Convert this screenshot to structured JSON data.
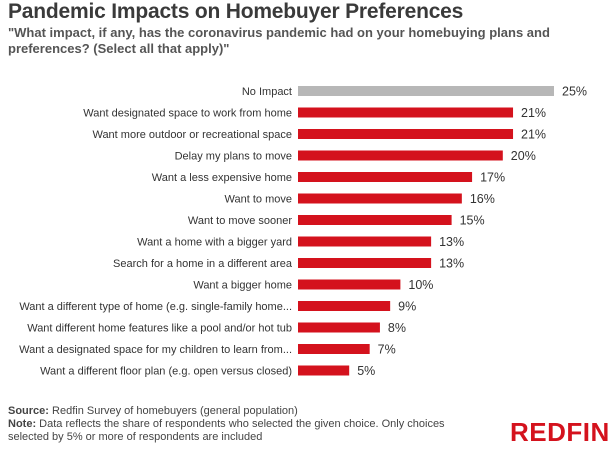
{
  "title": "Pandemic Impacts on Homebuyer Preferences",
  "subtitle": "\"What impact, if any, has the coronavirus pandemic had on your homebuying plans and preferences? (Select all that apply)\"",
  "chart_data": {
    "type": "bar",
    "orientation": "horizontal",
    "categories": [
      "No Impact",
      "Want designated space to work from home",
      "Want more outdoor or recreational space",
      "Delay my plans to move",
      "Want a less expensive home",
      "Want to move",
      "Want to move sooner",
      "Want a home with a bigger yard",
      "Search for a home in a different area",
      "Want a bigger home",
      "Want a different type of home (e.g. single-family home...",
      "Want different home features like a pool and/or hot tub",
      "Want a designated space for my children to learn from...",
      "Want a different floor plan (e.g. open versus closed)"
    ],
    "values": [
      25,
      21,
      21,
      20,
      17,
      16,
      15,
      13,
      13,
      10,
      9,
      8,
      7,
      5
    ],
    "value_labels": [
      "25%",
      "21%",
      "21%",
      "20%",
      "17%",
      "16%",
      "15%",
      "13%",
      "13%",
      "10%",
      "9%",
      "8%",
      "7%",
      "5%"
    ],
    "colors": [
      "#b7b7b7",
      "#d4121d",
      "#d4121d",
      "#d4121d",
      "#d4121d",
      "#d4121d",
      "#d4121d",
      "#d4121d",
      "#d4121d",
      "#d4121d",
      "#d4121d",
      "#d4121d",
      "#d4121d",
      "#d4121d"
    ],
    "xlim": [
      0,
      25
    ],
    "grid": false,
    "legend": "none"
  },
  "footer": {
    "source_label": "Source:",
    "source_text": " Redfin Survey of homebuyers (general population)",
    "note_label": "Note:",
    "note_text": " Data reflects the share of respondents who selected the given choice. Only choices selected by 5% or more of respondents are included"
  },
  "logo": "REDFIN"
}
